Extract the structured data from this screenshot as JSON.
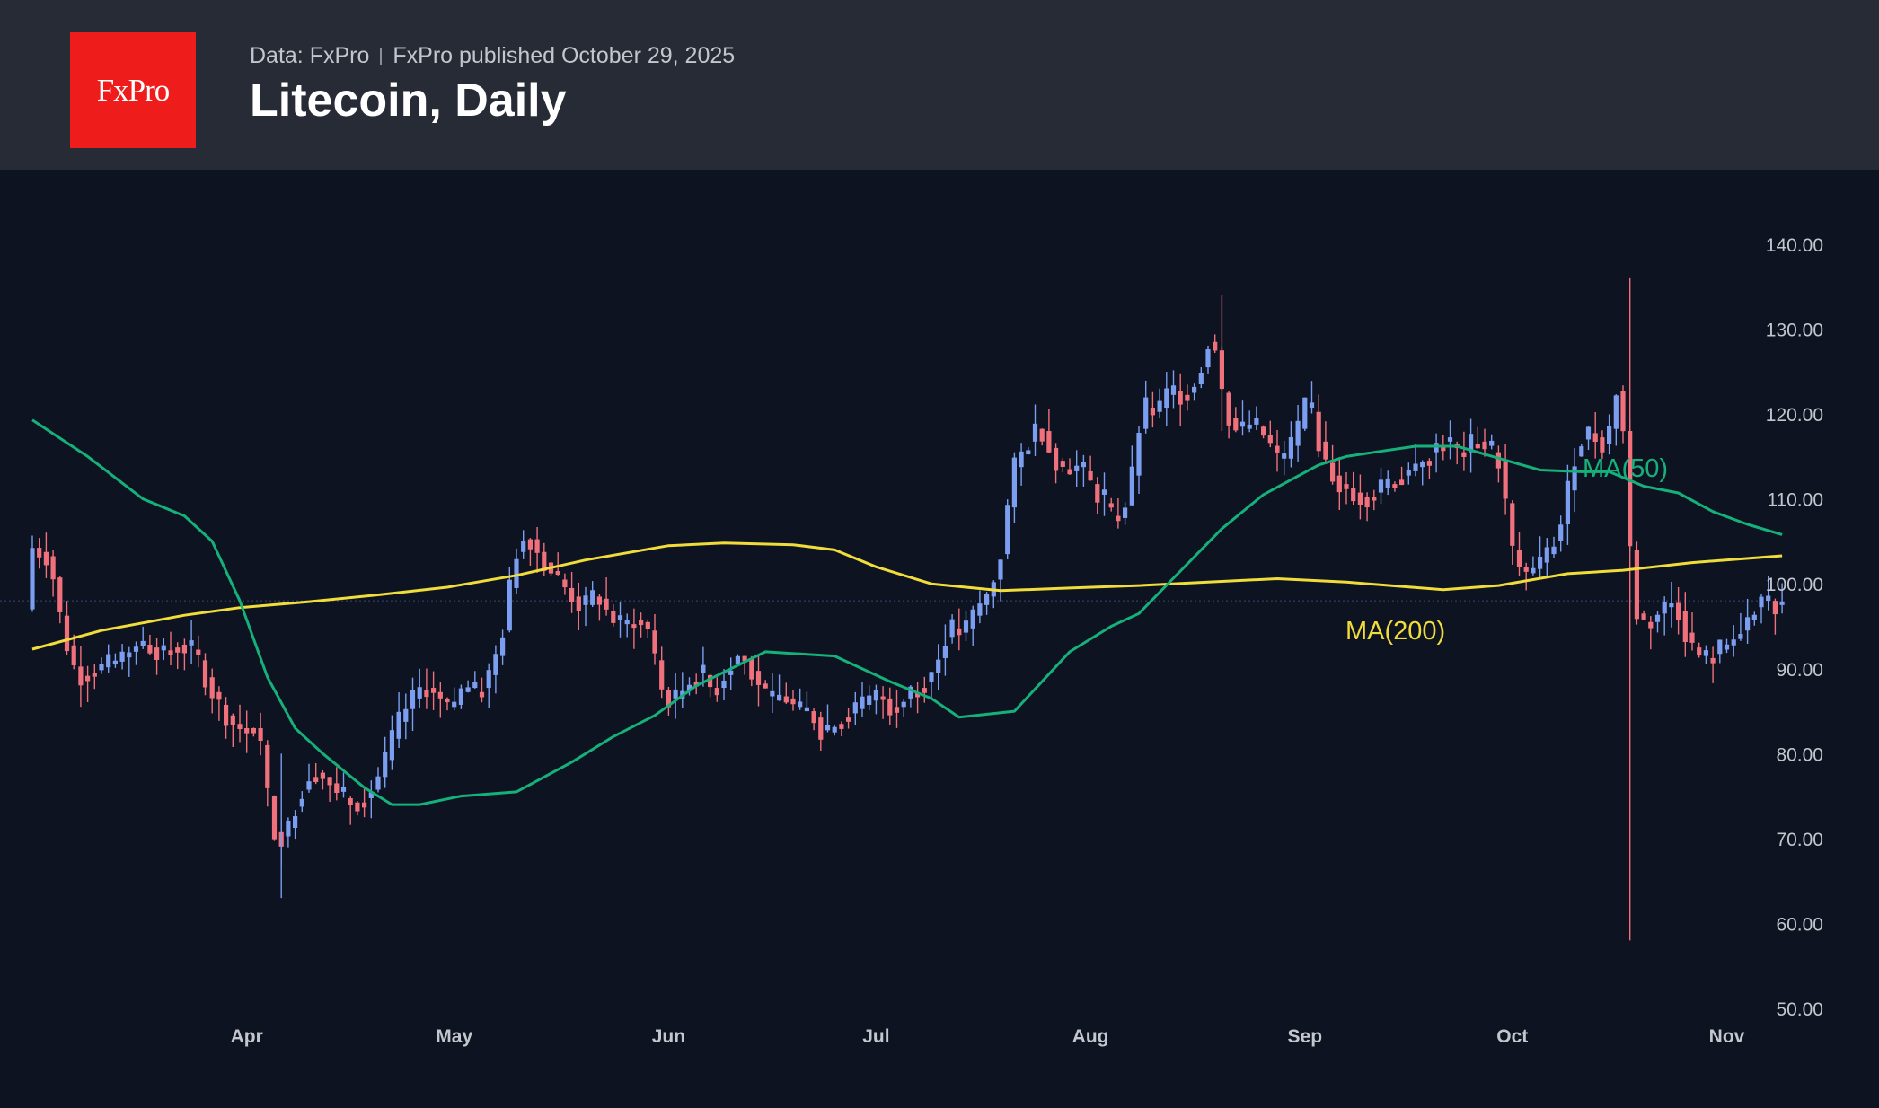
{
  "header": {
    "logo_text": "FxPro",
    "source": "Data: FxPro",
    "published": "FxPro published October 29, 2025",
    "title": "Litecoin, Daily"
  },
  "colors": {
    "background": "#0d1320",
    "header": "#272b36",
    "logo": "#ef1c1c",
    "bull": "#7b9ef0",
    "bear": "#f0717c",
    "ma50": "#16b07a",
    "ma200": "#f0dc3a",
    "axis_text": "#c3c6cd"
  },
  "chart_data": {
    "type": "candlestick",
    "title": "Litecoin, Daily",
    "ylim": [
      50,
      140
    ],
    "y_ticks": [
      "140.00",
      "130.00",
      "120.00",
      "110.00",
      "100.00",
      "90.00",
      "80.00",
      "70.00",
      "60.00",
      "50.00"
    ],
    "x_ticks": [
      "Apr",
      "May",
      "Jun",
      "Jul",
      "Aug",
      "Sep",
      "Oct",
      "Nov"
    ],
    "x_tick_days": [
      31,
      61,
      92,
      122,
      153,
      184,
      214,
      245
    ],
    "grid": false,
    "last_price": 98.0,
    "series_labels": {
      "ma50": "MA(50)",
      "ma200": "MA(200)"
    },
    "anchors": [
      [
        0,
        104.5
      ],
      [
        3,
        103
      ],
      [
        5,
        94
      ],
      [
        7,
        89
      ],
      [
        10,
        90
      ],
      [
        13,
        91
      ],
      [
        16,
        93
      ],
      [
        19,
        92
      ],
      [
        22,
        93
      ],
      [
        24,
        92
      ],
      [
        26,
        88
      ],
      [
        28,
        85
      ],
      [
        30,
        83
      ],
      [
        33,
        83
      ],
      [
        34,
        79
      ],
      [
        35,
        71
      ],
      [
        37,
        70
      ],
      [
        39,
        75
      ],
      [
        41,
        78
      ],
      [
        43,
        77
      ],
      [
        45,
        75
      ],
      [
        47,
        74
      ],
      [
        49,
        75
      ],
      [
        51,
        78
      ],
      [
        53,
        83
      ],
      [
        55,
        86
      ],
      [
        57,
        88
      ],
      [
        59,
        87
      ],
      [
        61,
        85
      ],
      [
        63,
        88
      ],
      [
        65,
        87
      ],
      [
        67,
        90
      ],
      [
        69,
        96
      ],
      [
        70,
        103
      ],
      [
        72,
        106
      ],
      [
        74,
        103
      ],
      [
        76,
        101
      ],
      [
        78,
        99
      ],
      [
        80,
        97
      ],
      [
        82,
        99
      ],
      [
        84,
        96
      ],
      [
        86,
        95
      ],
      [
        88,
        96
      ],
      [
        90,
        94
      ],
      [
        91,
        88
      ],
      [
        93,
        86
      ],
      [
        95,
        88
      ],
      [
        97,
        90
      ],
      [
        99,
        87
      ],
      [
        101,
        90
      ],
      [
        103,
        92
      ],
      [
        105,
        89
      ],
      [
        107,
        86
      ],
      [
        109,
        87
      ],
      [
        111,
        85
      ],
      [
        113,
        85
      ],
      [
        115,
        82
      ],
      [
        117,
        84
      ],
      [
        119,
        85
      ],
      [
        121,
        86
      ],
      [
        123,
        87
      ],
      [
        125,
        85
      ],
      [
        127,
        87
      ],
      [
        129,
        88
      ],
      [
        131,
        90
      ],
      [
        133,
        95
      ],
      [
        135,
        94
      ],
      [
        137,
        97
      ],
      [
        139,
        99
      ],
      [
        141,
        105
      ],
      [
        142,
        113
      ],
      [
        144,
        116
      ],
      [
        146,
        119
      ],
      [
        148,
        115
      ],
      [
        150,
        113
      ],
      [
        152,
        114
      ],
      [
        154,
        111
      ],
      [
        156,
        109
      ],
      [
        157,
        107
      ],
      [
        159,
        110
      ],
      [
        161,
        121
      ],
      [
        163,
        120
      ],
      [
        165,
        123
      ],
      [
        167,
        122
      ],
      [
        169,
        124
      ],
      [
        171,
        130
      ],
      [
        173,
        120
      ],
      [
        175,
        118
      ],
      [
        177,
        119
      ],
      [
        179,
        117
      ],
      [
        181,
        114
      ],
      [
        183,
        117
      ],
      [
        185,
        122
      ],
      [
        187,
        115
      ],
      [
        189,
        112
      ],
      [
        191,
        111
      ],
      [
        193,
        110
      ],
      [
        195,
        111
      ],
      [
        197,
        112
      ],
      [
        199,
        113
      ],
      [
        201,
        114
      ],
      [
        203,
        116
      ],
      [
        205,
        117
      ],
      [
        207,
        115
      ],
      [
        209,
        117
      ],
      [
        211,
        116
      ],
      [
        213,
        114
      ],
      [
        214,
        105
      ],
      [
        216,
        101
      ],
      [
        218,
        102
      ],
      [
        220,
        104
      ],
      [
        222,
        108
      ],
      [
        223,
        114
      ],
      [
        225,
        118
      ],
      [
        227,
        117
      ],
      [
        228,
        116
      ],
      [
        230,
        125
      ],
      [
        232,
        97
      ],
      [
        234,
        95
      ],
      [
        236,
        97
      ],
      [
        238,
        98
      ],
      [
        240,
        93
      ],
      [
        242,
        91
      ],
      [
        244,
        92
      ],
      [
        246,
        93
      ],
      [
        248,
        95
      ],
      [
        250,
        98
      ],
      [
        252,
        98
      ],
      [
        253,
        97
      ]
    ],
    "ma50": [
      [
        0,
        119.3
      ],
      [
        8,
        115
      ],
      [
        16,
        110
      ],
      [
        22,
        108
      ],
      [
        26,
        105
      ],
      [
        30,
        98
      ],
      [
        34,
        89
      ],
      [
        38,
        83
      ],
      [
        42,
        80
      ],
      [
        48,
        76
      ],
      [
        52,
        74
      ],
      [
        56,
        74
      ],
      [
        62,
        75
      ],
      [
        70,
        75.5
      ],
      [
        78,
        79
      ],
      [
        84,
        82
      ],
      [
        90,
        84.5
      ],
      [
        96,
        88
      ],
      [
        106,
        92
      ],
      [
        116,
        91.5
      ],
      [
        124,
        88.5
      ],
      [
        130,
        86.5
      ],
      [
        134,
        84.3
      ],
      [
        142,
        85
      ],
      [
        150,
        92
      ],
      [
        156,
        95
      ],
      [
        160,
        96.5
      ],
      [
        166,
        101.5
      ],
      [
        172,
        106.5
      ],
      [
        178,
        110.5
      ],
      [
        186,
        114
      ],
      [
        190,
        115
      ],
      [
        194,
        115.5
      ],
      [
        200,
        116.2
      ],
      [
        206,
        116.2
      ],
      [
        212,
        114.8
      ],
      [
        218,
        113.4
      ],
      [
        224,
        113.2
      ],
      [
        228,
        113.2
      ],
      [
        233,
        111.5
      ],
      [
        238,
        110.7
      ],
      [
        243,
        108.5
      ],
      [
        248,
        107
      ],
      [
        253,
        105.8
      ]
    ],
    "ma200": [
      [
        0,
        92.3
      ],
      [
        10,
        94.5
      ],
      [
        22,
        96.3
      ],
      [
        30,
        97.2
      ],
      [
        40,
        97.9
      ],
      [
        50,
        98.7
      ],
      [
        60,
        99.6
      ],
      [
        70,
        101
      ],
      [
        80,
        102.8
      ],
      [
        92,
        104.5
      ],
      [
        100,
        104.8
      ],
      [
        110,
        104.6
      ],
      [
        116,
        104
      ],
      [
        122,
        102
      ],
      [
        130,
        100
      ],
      [
        140,
        99.2
      ],
      [
        150,
        99.5
      ],
      [
        160,
        99.8
      ],
      [
        170,
        100.2
      ],
      [
        180,
        100.6
      ],
      [
        190,
        100.2
      ],
      [
        198,
        99.7
      ],
      [
        204,
        99.3
      ],
      [
        212,
        99.8
      ],
      [
        222,
        101.2
      ],
      [
        230,
        101.6
      ],
      [
        240,
        102.5
      ],
      [
        253,
        103.3
      ]
    ]
  }
}
